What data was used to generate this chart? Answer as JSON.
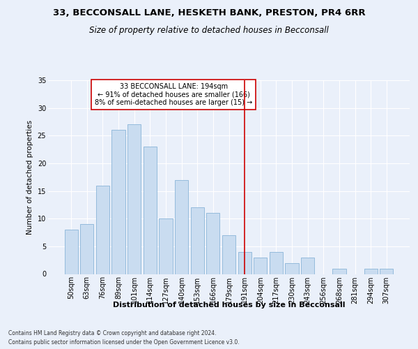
{
  "title1": "33, BECCONSALL LANE, HESKETH BANK, PRESTON, PR4 6RR",
  "title2": "Size of property relative to detached houses in Becconsall",
  "xlabel": "Distribution of detached houses by size in Becconsall",
  "ylabel": "Number of detached properties",
  "bar_labels": [
    "50sqm",
    "63sqm",
    "76sqm",
    "89sqm",
    "101sqm",
    "114sqm",
    "127sqm",
    "140sqm",
    "153sqm",
    "166sqm",
    "179sqm",
    "191sqm",
    "204sqm",
    "217sqm",
    "230sqm",
    "243sqm",
    "256sqm",
    "268sqm",
    "281sqm",
    "294sqm",
    "307sqm"
  ],
  "bar_values": [
    8,
    9,
    16,
    26,
    27,
    23,
    10,
    17,
    12,
    11,
    7,
    4,
    3,
    4,
    2,
    3,
    0,
    1,
    0,
    1,
    1
  ],
  "bar_color": "#c9dcf0",
  "bar_edge_color": "#8ab4d8",
  "vline_index": 11,
  "vline_color": "#cc0000",
  "annotation_text": "33 BECCONSALL LANE: 194sqm\n← 91% of detached houses are smaller (166)\n8% of semi-detached houses are larger (15) →",
  "annotation_box_color": "#ffffff",
  "annotation_box_edge_color": "#cc0000",
  "ylim": [
    0,
    35
  ],
  "yticks": [
    0,
    5,
    10,
    15,
    20,
    25,
    30,
    35
  ],
  "footer1": "Contains HM Land Registry data © Crown copyright and database right 2024.",
  "footer2": "Contains public sector information licensed under the Open Government Licence v3.0.",
  "bg_color": "#eaf0fa",
  "plot_bg_color": "#eaf0fa",
  "grid_color": "#ffffff",
  "title1_fontsize": 9.5,
  "title2_fontsize": 8.5,
  "xlabel_fontsize": 8,
  "ylabel_fontsize": 7.5,
  "tick_fontsize": 7,
  "annotation_fontsize": 7,
  "footer_fontsize": 5.5
}
